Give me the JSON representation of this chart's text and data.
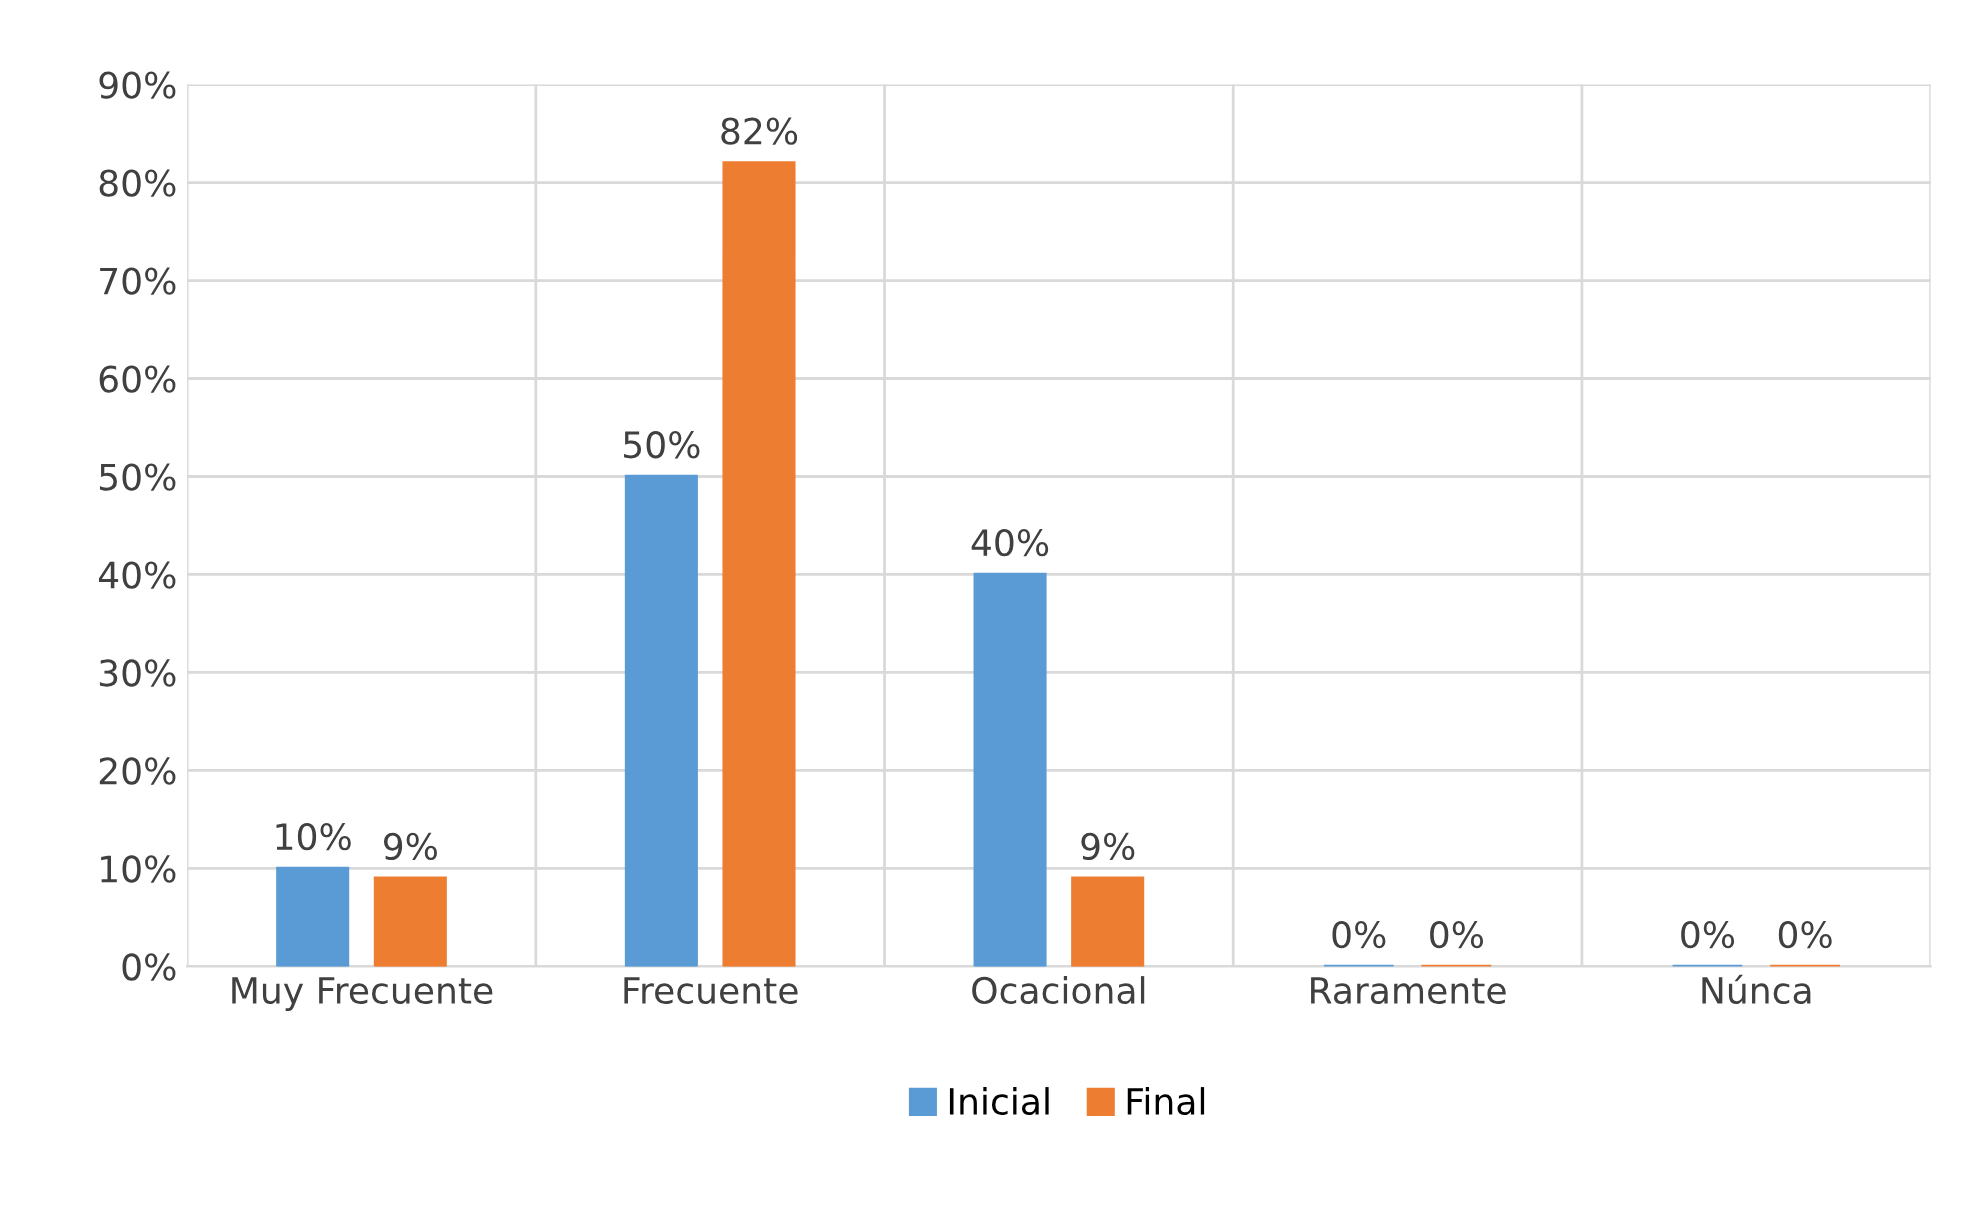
{
  "chart_data": {
    "type": "bar",
    "categories": [
      "Muy Frecuente",
      "Frecuente",
      "Ocacional",
      "Raramente",
      "Núnca"
    ],
    "series": [
      {
        "name": "Inicial",
        "color": "#5b9bd5",
        "values": [
          10,
          50,
          40,
          0,
          0
        ],
        "value_labels": [
          "10%",
          "50%",
          "40%",
          "0%",
          "0%"
        ]
      },
      {
        "name": "Final",
        "color": "#ed7d31",
        "values": [
          9,
          82,
          9,
          0,
          0
        ],
        "value_labels": [
          "9%",
          "82%",
          "9%",
          "0%",
          "0%"
        ]
      }
    ],
    "ylim": [
      0,
      90
    ],
    "yticks": [
      {
        "value": 0,
        "label": "0%"
      },
      {
        "value": 10,
        "label": "10%"
      },
      {
        "value": 20,
        "label": "20%"
      },
      {
        "value": 30,
        "label": "30%"
      },
      {
        "value": 40,
        "label": "40%"
      },
      {
        "value": 50,
        "label": "50%"
      },
      {
        "value": 60,
        "label": "60%"
      },
      {
        "value": 70,
        "label": "70%"
      },
      {
        "value": 80,
        "label": "80%"
      },
      {
        "value": 90,
        "label": "90%"
      }
    ],
    "grid": true,
    "legend": "bottom"
  }
}
